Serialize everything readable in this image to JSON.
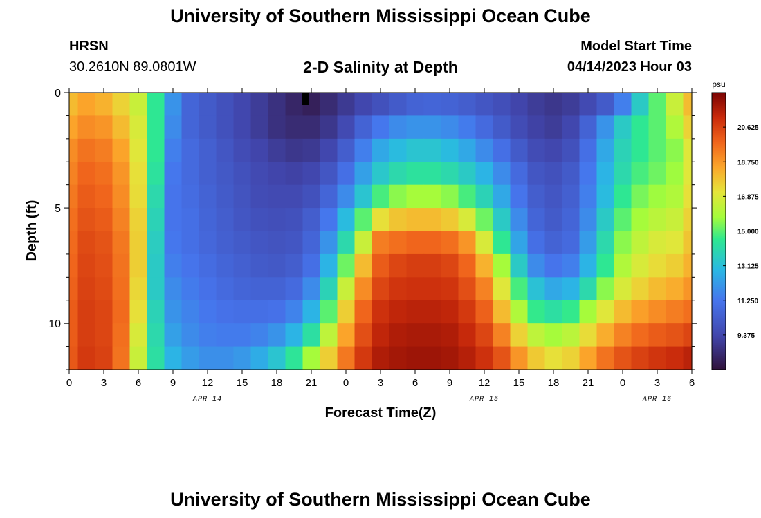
{
  "page": {
    "title": "University of Southern Mississippi Ocean Cube",
    "footer_title": "University of Southern Mississippi Ocean Cube",
    "station": "HRSN",
    "coordinates": "30.2610N  89.0801W",
    "subtitle": "2-D Salinity at Depth",
    "model_start_label": "Model Start Time",
    "model_start_value": "04/14/2023 Hour 03"
  },
  "chart_data": {
    "type": "heatmap",
    "title": "2-D Salinity at Depth",
    "xlabel": "Forecast Time(Z)",
    "ylabel": "Depth (ft)",
    "colorbar_unit": "psu",
    "colorbar_ticks": [
      "20.625",
      "18.750",
      "16.875",
      "15.000",
      "13.125",
      "11.250",
      "9.375"
    ],
    "colorbar_values": [
      20.625,
      18.75,
      16.875,
      15.0,
      13.125,
      11.25,
      9.375
    ],
    "value_range": [
      7.5,
      22.5
    ],
    "x_hours_range": [
      0,
      54
    ],
    "x_tick_hours": [
      0,
      3,
      6,
      9,
      12,
      15,
      18,
      21,
      24,
      27,
      30,
      33,
      36,
      39,
      42,
      45,
      48,
      51,
      54
    ],
    "x_tick_labels": [
      "0",
      "3",
      "6",
      "9",
      "12",
      "15",
      "18",
      "21",
      "0",
      "3",
      "6",
      "9",
      "12",
      "15",
      "18",
      "21",
      "0",
      "3",
      "6"
    ],
    "date_labels": [
      {
        "hour": 12,
        "text": "APR 14"
      },
      {
        "hour": 36,
        "text": "APR 15"
      },
      {
        "hour": 51,
        "text": "APR 16"
      }
    ],
    "y_range_ft": [
      0,
      12
    ],
    "y_tick_values": [
      0,
      5,
      10
    ],
    "y_tick_labels": [
      "0",
      "5",
      "10"
    ],
    "depth_levels_ft": [
      0,
      1,
      2,
      3,
      4,
      5,
      6,
      7,
      8,
      9,
      10,
      11
    ],
    "time_hours": [
      0,
      1.5,
      3,
      4.5,
      6,
      7.5,
      9,
      10.5,
      12,
      13.5,
      15,
      16.5,
      18,
      19.5,
      21,
      22.5,
      24,
      25.5,
      27,
      28.5,
      30,
      31.5,
      33,
      34.5,
      36,
      37.5,
      39,
      40.5,
      42,
      43.5,
      45,
      46.5,
      48,
      49.5,
      51,
      52.5,
      54
    ],
    "salinity_psu": [
      [
        18.0,
        18.5,
        18.2,
        17.5,
        16.5,
        14.5,
        12.0,
        10.6,
        10.2,
        9.8,
        9.4,
        9.0,
        8.6,
        8.2,
        8.0,
        8.4,
        8.9,
        9.4,
        9.8,
        10.2,
        10.5,
        10.6,
        10.5,
        10.3,
        10.0,
        9.7,
        9.3,
        9.0,
        8.8,
        9.0,
        9.5,
        10.2,
        11.5,
        13.5,
        15.0,
        16.5,
        18.0
      ],
      [
        18.5,
        19.0,
        18.8,
        18.0,
        16.8,
        14.5,
        11.8,
        10.6,
        10.2,
        9.8,
        9.4,
        9.0,
        8.6,
        8.4,
        8.4,
        8.8,
        9.5,
        10.5,
        11.3,
        11.8,
        12.0,
        12.0,
        11.8,
        11.4,
        10.8,
        10.2,
        9.6,
        9.2,
        9.0,
        9.4,
        10.5,
        12.0,
        13.5,
        14.5,
        15.0,
        16.0,
        17.5
      ],
      [
        19.0,
        19.5,
        19.3,
        18.5,
        17.0,
        14.5,
        11.5,
        10.8,
        10.4,
        10.0,
        9.6,
        9.3,
        9.0,
        8.8,
        8.9,
        9.4,
        10.3,
        11.5,
        12.5,
        13.0,
        13.3,
        13.3,
        13.0,
        12.5,
        11.8,
        11.0,
        10.2,
        9.6,
        9.4,
        9.8,
        11.0,
        12.5,
        13.8,
        14.5,
        15.0,
        15.5,
        17.0
      ],
      [
        19.2,
        19.8,
        19.6,
        18.8,
        17.2,
        14.3,
        11.3,
        10.8,
        10.4,
        10.1,
        9.8,
        9.5,
        9.3,
        9.2,
        9.4,
        10.0,
        11.0,
        12.3,
        13.4,
        14.0,
        14.3,
        14.3,
        14.0,
        13.5,
        12.8,
        11.8,
        10.8,
        10.0,
        9.8,
        10.2,
        11.3,
        12.8,
        14.0,
        14.8,
        15.2,
        15.7,
        17.0
      ],
      [
        19.4,
        20.0,
        19.8,
        19.0,
        17.3,
        14.0,
        11.2,
        10.9,
        10.5,
        10.2,
        9.9,
        9.6,
        9.5,
        9.5,
        9.8,
        10.6,
        11.8,
        13.3,
        14.8,
        15.5,
        15.8,
        15.8,
        15.5,
        14.8,
        13.8,
        12.5,
        11.2,
        10.3,
        10.0,
        10.4,
        11.5,
        13.0,
        14.5,
        15.3,
        15.7,
        16.0,
        17.2
      ],
      [
        19.6,
        20.2,
        20.0,
        19.2,
        17.5,
        13.8,
        11.2,
        11.0,
        10.6,
        10.3,
        10.0,
        9.8,
        9.7,
        9.8,
        10.3,
        11.3,
        13.0,
        15.0,
        17.2,
        17.8,
        18.0,
        18.0,
        17.7,
        16.8,
        15.2,
        13.5,
        11.8,
        10.6,
        10.2,
        10.6,
        11.8,
        13.5,
        15.0,
        15.8,
        16.2,
        16.5,
        17.5
      ],
      [
        19.7,
        20.4,
        20.2,
        19.4,
        17.6,
        13.6,
        11.3,
        11.0,
        10.7,
        10.4,
        10.2,
        10.0,
        9.9,
        10.0,
        10.6,
        12.0,
        14.0,
        16.5,
        19.3,
        19.6,
        19.8,
        19.8,
        19.6,
        18.8,
        16.8,
        14.5,
        12.4,
        11.0,
        10.5,
        10.8,
        12.2,
        14.0,
        15.5,
        16.3,
        16.8,
        17.0,
        17.8
      ],
      [
        19.8,
        20.5,
        20.3,
        19.5,
        17.6,
        13.5,
        11.5,
        11.2,
        10.9,
        10.6,
        10.4,
        10.2,
        10.1,
        10.3,
        11.0,
        12.8,
        15.2,
        18.0,
        20.0,
        20.5,
        20.7,
        20.7,
        20.5,
        19.8,
        18.2,
        15.8,
        13.5,
        11.8,
        11.2,
        11.5,
        12.8,
        14.5,
        16.0,
        16.8,
        17.3,
        17.6,
        18.2
      ],
      [
        19.9,
        20.6,
        20.4,
        19.6,
        17.4,
        13.5,
        11.8,
        11.4,
        11.1,
        10.8,
        10.6,
        10.5,
        10.5,
        10.8,
        11.8,
        13.8,
        16.5,
        19.0,
        20.5,
        20.9,
        21.0,
        21.0,
        20.9,
        20.3,
        19.2,
        17.0,
        14.8,
        13.2,
        12.5,
        12.8,
        14.0,
        15.5,
        16.8,
        17.5,
        18.0,
        18.3,
        18.8
      ],
      [
        20.0,
        20.7,
        20.5,
        19.7,
        17.2,
        13.8,
        12.0,
        11.6,
        11.3,
        11.1,
        11.0,
        11.0,
        11.1,
        11.6,
        12.8,
        15.0,
        17.6,
        19.8,
        21.0,
        21.3,
        21.4,
        21.4,
        21.3,
        20.8,
        19.9,
        18.0,
        16.0,
        14.6,
        14.2,
        14.6,
        15.8,
        17.0,
        18.0,
        18.6,
        19.0,
        19.3,
        19.6
      ],
      [
        20.0,
        20.7,
        20.5,
        19.6,
        16.8,
        14.0,
        12.3,
        11.8,
        11.5,
        11.4,
        11.4,
        11.6,
        12.0,
        12.8,
        14.2,
        16.3,
        18.5,
        20.3,
        21.3,
        21.6,
        21.7,
        21.7,
        21.6,
        21.2,
        20.5,
        19.2,
        17.5,
        16.3,
        15.8,
        16.2,
        17.3,
        18.3,
        19.2,
        19.7,
        20.0,
        20.2,
        20.5
      ],
      [
        20.1,
        20.8,
        20.6,
        19.5,
        16.5,
        14.2,
        12.8,
        12.2,
        11.9,
        11.9,
        12.1,
        12.6,
        13.3,
        14.4,
        15.8,
        17.6,
        19.4,
        20.8,
        21.6,
        21.8,
        21.9,
        21.9,
        21.8,
        21.5,
        21.0,
        20.2,
        18.8,
        17.7,
        17.2,
        17.5,
        18.5,
        19.5,
        20.2,
        20.6,
        20.9,
        21.1,
        21.4
      ]
    ]
  }
}
